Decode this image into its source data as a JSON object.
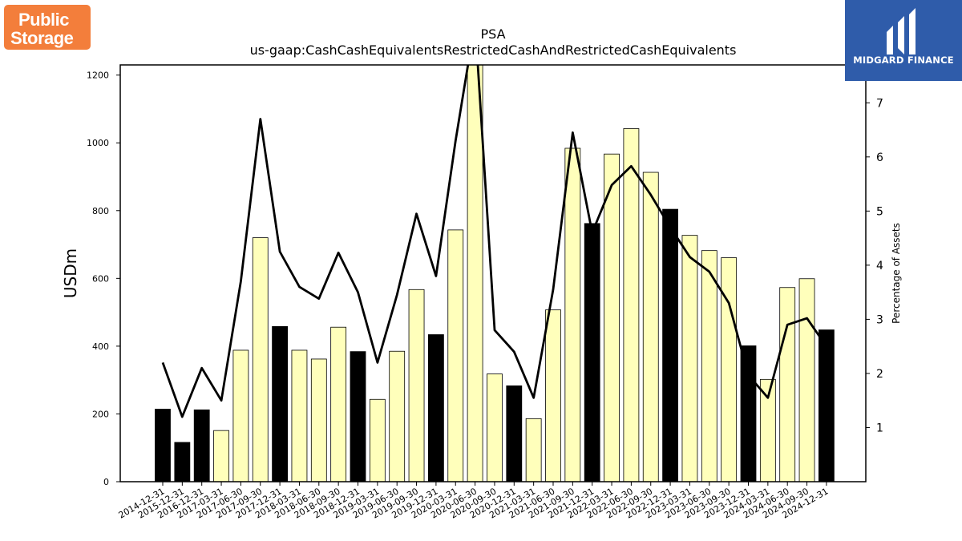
{
  "logos": {
    "left": {
      "line1": "Public",
      "line2": "Storage"
    },
    "right": {
      "text": "MIDGARD FINANCE"
    }
  },
  "chart_data": {
    "type": "bar",
    "title": "PSA",
    "subtitle": "us-gaap:CashCashEquivalentsRestrictedCashAndRestrictedCashEquivalents",
    "ylabel": "USDm",
    "y2label": "Percentage of Assets",
    "ylim": [
      0,
      1230
    ],
    "y2lim": [
      0,
      7.7
    ],
    "yticks": [
      0,
      200,
      400,
      600,
      800,
      1000,
      1200
    ],
    "y2ticks": [
      1,
      2,
      3,
      4,
      5,
      6,
      7
    ],
    "colors": {
      "annual_bar": "#000000",
      "quarter_bar": "#ffffbb",
      "line": "#000000"
    },
    "categories": [
      "2014-12-31",
      "2015-12-31",
      "2016-12-31",
      "2017-03-31",
      "2017-06-30",
      "2017-09-30",
      "2017-12-31",
      "2018-03-31",
      "2018-06-30",
      "2018-09-30",
      "2018-12-31",
      "2019-03-31",
      "2019-06-30",
      "2019-09-30",
      "2019-12-31",
      "2020-03-31",
      "2020-06-30",
      "2020-09-30",
      "2020-12-31",
      "2021-03-31",
      "2021-06-30",
      "2021-09-30",
      "2021-12-31",
      "2022-03-31",
      "2022-06-30",
      "2022-09-30",
      "2022-12-31",
      "2023-03-31",
      "2023-06-30",
      "2023-09-30",
      "2023-12-31",
      "2024-03-31",
      "2024-06-30",
      "2024-09-30",
      "2024-12-31"
    ],
    "series": [
      {
        "kind": "bar",
        "values": [
          214,
          116,
          212,
          151,
          388,
          720,
          458,
          388,
          362,
          456,
          384,
          243,
          385,
          567,
          434,
          743,
          1300,
          318,
          283,
          186,
          507,
          984,
          762,
          967,
          1042,
          913,
          804,
          727,
          682,
          661,
          401,
          302,
          573,
          599,
          448
        ],
        "annual": [
          true,
          true,
          true,
          false,
          false,
          false,
          true,
          false,
          false,
          false,
          true,
          false,
          false,
          false,
          true,
          false,
          false,
          false,
          true,
          false,
          false,
          false,
          true,
          false,
          false,
          false,
          true,
          false,
          false,
          false,
          true,
          false,
          false,
          false,
          true
        ]
      },
      {
        "kind": "line",
        "axis": "right",
        "values": [
          2.2,
          1.2,
          2.1,
          1.5,
          3.7,
          6.7,
          4.25,
          3.6,
          3.38,
          4.23,
          3.5,
          2.2,
          3.45,
          4.95,
          3.8,
          6.3,
          8.5,
          2.8,
          2.4,
          1.55,
          3.55,
          6.45,
          4.6,
          5.48,
          5.83,
          5.3,
          4.7,
          4.15,
          3.88,
          3.3,
          1.97,
          1.55,
          2.9,
          3.02,
          2.5
        ]
      }
    ]
  }
}
